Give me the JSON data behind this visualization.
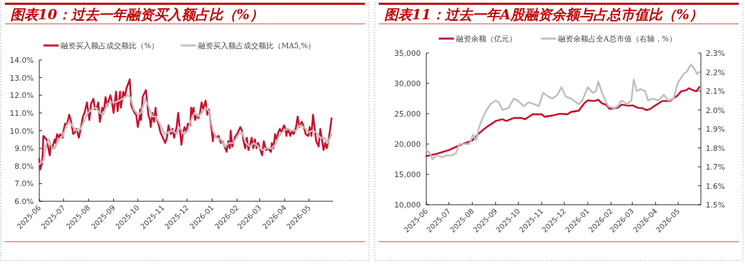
{
  "chart_data": [
    {
      "type": "line",
      "title": "图表10：过去一年融资买入额占比（%）",
      "legend": "top",
      "xlim": [
        "2025-06-01",
        "2026-05-31"
      ],
      "xticks": [
        "2025-06",
        "2025-07",
        "2025-08",
        "2025-09",
        "2025-10",
        "2025-11",
        "2025-12",
        "2026-01",
        "2026-02",
        "2026-03",
        "2026-04",
        "2026-05"
      ],
      "ylim": [
        6,
        14
      ],
      "yticks": [
        {
          "value": 6,
          "label": "6.0%"
        },
        {
          "value": 7,
          "label": "7.0%"
        },
        {
          "value": 8,
          "label": "8.0%"
        },
        {
          "value": 9,
          "label": "9.0%"
        },
        {
          "value": 10,
          "label": "10.0%"
        },
        {
          "value": 11,
          "label": "11.0%"
        },
        {
          "value": 12,
          "label": "12.0%"
        },
        {
          "value": 13,
          "label": "13.0%"
        },
        {
          "value": 14,
          "label": "14.0%"
        }
      ],
      "series": [
        {
          "name": "融资买入额占成交额比（%）",
          "color": "#c8102e",
          "x": [
            "2025-06-01",
            "2025-06-02",
            "2025-06-04",
            "2025-06-05",
            "2025-06-06",
            "2025-06-10",
            "2025-06-14",
            "2025-06-15",
            "2025-06-17",
            "2025-06-20",
            "2025-06-21",
            "2025-06-23",
            "2025-06-25",
            "2025-06-27",
            "2025-06-30",
            "2025-07-01",
            "2025-07-03",
            "2025-07-05",
            "2025-07-06",
            "2025-07-08",
            "2025-07-10",
            "2025-07-13",
            "2025-07-15",
            "2025-07-17",
            "2025-07-20",
            "2025-07-23",
            "2025-07-25",
            "2025-07-27",
            "2025-07-30",
            "2025-08-02",
            "2025-08-04",
            "2025-08-07",
            "2025-08-09",
            "2025-08-12",
            "2025-08-13",
            "2025-08-15",
            "2025-08-18",
            "2025-08-20",
            "2025-08-22",
            "2025-08-24",
            "2025-08-26",
            "2025-08-28",
            "2025-08-30",
            "2025-09-01",
            "2025-09-04",
            "2025-09-06",
            "2025-09-09",
            "2025-09-10",
            "2025-09-13",
            "2025-09-15",
            "2025-09-17",
            "2025-09-21",
            "2025-09-23",
            "2025-09-25",
            "2025-09-27",
            "2025-09-29",
            "2025-10-01",
            "2025-10-03",
            "2025-10-04",
            "2025-10-05",
            "2025-10-07",
            "2025-10-09",
            "2025-10-11",
            "2025-10-13",
            "2025-10-14",
            "2025-10-16",
            "2025-10-17",
            "2025-10-19",
            "2025-10-21",
            "2025-10-23",
            "2025-10-24",
            "2025-10-27",
            "2025-10-29",
            "2025-11-04",
            "2025-11-06",
            "2025-11-08",
            "2025-11-11",
            "2025-11-13",
            "2025-11-15",
            "2025-11-18",
            "2025-11-20",
            "2025-11-24",
            "2025-11-26",
            "2025-11-28",
            "2025-11-30",
            "2025-12-02",
            "2025-12-05",
            "2025-12-06",
            "2025-12-08",
            "2025-12-09",
            "2025-12-11",
            "2025-12-13",
            "2025-12-15",
            "2025-12-17",
            "2025-12-19",
            "2025-12-21",
            "2025-12-24",
            "2025-12-26",
            "2025-12-28",
            "2025-12-30",
            "2026-01-02",
            "2026-01-03",
            "2026-01-06",
            "2026-01-09",
            "2026-01-12",
            "2026-01-14",
            "2026-01-19",
            "2026-01-21",
            "2026-01-23",
            "2026-01-24",
            "2026-01-26",
            "2026-01-29",
            "2026-02-02",
            "2026-02-05",
            "2026-02-07",
            "2026-02-09",
            "2026-02-11",
            "2026-02-13",
            "2026-02-15",
            "2026-02-17",
            "2026-02-19",
            "2026-02-21",
            "2026-02-23",
            "2026-02-25",
            "2026-02-27",
            "2026-03-04",
            "2026-03-06",
            "2026-03-09",
            "2026-03-11",
            "2026-03-15",
            "2026-03-16",
            "2026-03-18",
            "2026-03-20",
            "2026-03-22",
            "2026-03-24",
            "2026-03-26",
            "2026-03-28",
            "2026-03-31",
            "2026-04-02",
            "2026-04-03",
            "2026-04-05",
            "2026-04-08",
            "2026-04-10",
            "2026-04-12",
            "2026-04-15",
            "2026-04-17",
            "2026-04-19",
            "2026-04-22",
            "2026-04-24",
            "2026-04-27",
            "2026-04-30",
            "2026-05-02",
            "2026-05-04",
            "2026-05-06",
            "2026-05-10",
            "2026-05-13",
            "2026-05-15",
            "2026-05-17",
            "2026-05-19",
            "2026-05-21",
            "2026-05-23",
            "2026-05-25",
            "2026-05-27",
            "2026-05-29"
          ],
          "values": [
            8.4,
            7.8,
            8.1,
            8.5,
            9.7,
            9.5,
            8.6,
            9.2,
            9.0,
            9.5,
            9.3,
            9.8,
            9.6,
            9.8,
            9.6,
            10.0,
            10.4,
            10.3,
            10.5,
            10.9,
            10.6,
            9.8,
            9.9,
            10.1,
            9.6,
            10.3,
            10.8,
            11.0,
            11.6,
            10.6,
            11.5,
            11.8,
            11.2,
            11.4,
            11.6,
            10.5,
            11.3,
            11.1,
            11.9,
            11.4,
            11.7,
            12.0,
            11.6,
            11.0,
            12.2,
            11.1,
            12.2,
            11.3,
            12.2,
            11.9,
            12.4,
            12.9,
            11.4,
            11.2,
            11.0,
            10.9,
            10.2,
            10.7,
            11.2,
            10.6,
            11.9,
            12.1,
            12.3,
            11.4,
            10.9,
            10.6,
            10.2,
            11.0,
            10.5,
            11.3,
            10.7,
            10.3,
            9.9,
            9.3,
            9.6,
            10.3,
            9.8,
            10.1,
            9.6,
            10.2,
            11.0,
            9.2,
            9.9,
            10.2,
            9.9,
            10.4,
            10.3,
            11.3,
            10.9,
            11.3,
            10.6,
            10.9,
            10.7,
            11.0,
            11.6,
            11.2,
            11.7,
            10.9,
            11.2,
            10.6,
            9.4,
            9.9,
            9.6,
            9.7,
            9.3,
            9.4,
            8.8,
            9.4,
            9.0,
            10.0,
            9.1,
            9.6,
            9.9,
            10.2,
            10.0,
            9.4,
            9.0,
            9.6,
            8.9,
            9.2,
            9.6,
            9.0,
            9.5,
            9.0,
            9.3,
            8.6,
            9.4,
            8.9,
            9.0,
            8.8,
            9.3,
            9.0,
            9.8,
            9.5,
            9.9,
            10.1,
            9.9,
            10.3,
            10.1,
            9.7,
            10.1,
            9.7,
            10.0,
            9.8,
            10.2,
            10.8,
            10.2,
            10.5,
            10.3,
            9.8,
            9.7,
            10.2,
            9.7,
            10.9,
            9.4,
            9.1,
            10.1,
            9.5,
            8.9,
            9.3,
            9.0,
            9.4,
            10.0,
            10.7
          ]
        },
        {
          "name": "融资买入额占成交额比（MA5,%）",
          "color": "#c0c0c0",
          "x": [
            "2025-06-01",
            "2025-06-06",
            "2025-06-10",
            "2025-06-13",
            "2025-06-17",
            "2025-06-20",
            "2025-06-25",
            "2025-06-30",
            "2025-07-05",
            "2025-07-08",
            "2025-07-13",
            "2025-07-17",
            "2025-07-22",
            "2025-07-27",
            "2025-07-31",
            "2025-08-05",
            "2025-08-10",
            "2025-08-15",
            "2025-08-19",
            "2025-08-24",
            "2025-08-29",
            "2025-09-03",
            "2025-09-08",
            "2025-09-12",
            "2025-09-18",
            "2025-09-22",
            "2025-09-26",
            "2025-10-01",
            "2025-10-05",
            "2025-10-10",
            "2025-10-14",
            "2025-10-19",
            "2025-10-23",
            "2025-10-28",
            "2025-11-03",
            "2025-11-08",
            "2025-11-13",
            "2025-11-18",
            "2025-11-22",
            "2025-11-27",
            "2025-12-02",
            "2025-12-06",
            "2025-12-10",
            "2025-12-15",
            "2025-12-19",
            "2025-12-24",
            "2025-12-28",
            "2026-01-02",
            "2026-01-06",
            "2026-01-12",
            "2026-01-17",
            "2026-01-22",
            "2026-01-27",
            "2026-02-03",
            "2026-02-07",
            "2026-02-12",
            "2026-02-17",
            "2026-02-22",
            "2026-02-27",
            "2026-03-04",
            "2026-03-10",
            "2026-03-16",
            "2026-03-20",
            "2026-03-25",
            "2026-03-31",
            "2026-04-05",
            "2026-04-10",
            "2026-04-15",
            "2026-04-20",
            "2026-04-25",
            "2026-04-30",
            "2026-05-05",
            "2026-05-10",
            "2026-05-15",
            "2026-05-20",
            "2026-05-24",
            "2026-05-29"
          ],
          "values": [
            8.1,
            8.3,
            9.3,
            9.5,
            9.0,
            9.0,
            9.5,
            9.7,
            10.3,
            10.5,
            10.2,
            10.0,
            10.1,
            10.6,
            11.0,
            11.2,
            11.3,
            11.0,
            10.9,
            11.5,
            11.6,
            11.6,
            11.7,
            11.8,
            12.0,
            11.9,
            11.2,
            10.9,
            11.0,
            11.8,
            11.4,
            10.8,
            10.8,
            10.4,
            9.8,
            9.9,
            10.0,
            9.8,
            10.2,
            9.8,
            10.0,
            10.6,
            11.0,
            10.8,
            11.0,
            11.3,
            11.1,
            10.0,
            9.6,
            9.5,
            9.1,
            9.3,
            9.3,
            9.8,
            9.9,
            9.3,
            9.1,
            9.3,
            9.1,
            8.9,
            9.0,
            9.0,
            9.2,
            9.7,
            10.0,
            10.1,
            10.0,
            10.0,
            10.3,
            10.2,
            9.9,
            10.0,
            9.9,
            9.6,
            9.6,
            9.3,
            9.8
          ]
        }
      ]
    },
    {
      "type": "line",
      "title": "图表11：过去一年A股融资余额与占总市值比（%）",
      "legend": "top",
      "xlim": [
        "2025-06-01",
        "2026-05-31"
      ],
      "xticks": [
        "2025-06",
        "2025-07",
        "2025-08",
        "2025-09",
        "2025-10",
        "2025-11",
        "2025-12",
        "2026-01",
        "2026-02",
        "2026-03",
        "2026-04",
        "2026-05"
      ],
      "ylim": [
        10000,
        35000
      ],
      "yticks": [
        {
          "value": 10000,
          "label": "10,000"
        },
        {
          "value": 15000,
          "label": "15,000"
        },
        {
          "value": 20000,
          "label": "20,000"
        },
        {
          "value": 25000,
          "label": "25,000"
        },
        {
          "value": 30000,
          "label": "30,000"
        },
        {
          "value": 35000,
          "label": "35,000"
        }
      ],
      "y2lim": [
        1.5,
        2.3
      ],
      "y2ticks": [
        {
          "value": 1.5,
          "label": "1.5%"
        },
        {
          "value": 1.6,
          "label": "1.6%"
        },
        {
          "value": 1.7,
          "label": "1.7%"
        },
        {
          "value": 1.8,
          "label": "1.8%"
        },
        {
          "value": 1.9,
          "label": "1.9%"
        },
        {
          "value": 2.0,
          "label": "2.0%"
        },
        {
          "value": 2.1,
          "label": "2.1%"
        },
        {
          "value": 2.2,
          "label": "2.2%"
        },
        {
          "value": 2.3,
          "label": "2.3%"
        }
      ],
      "series": [
        {
          "name": "融资余额（亿元）",
          "color": "#c8102e",
          "x": [
            "2025-06-01",
            "2025-06-15",
            "2025-07-01",
            "2025-07-15",
            "2025-08-01",
            "2025-08-10",
            "2025-08-20",
            "2025-09-01",
            "2025-09-10",
            "2025-09-15",
            "2025-09-25",
            "2025-10-05",
            "2025-10-10",
            "2025-10-20",
            "2025-11-01",
            "2025-11-05",
            "2025-11-15",
            "2025-11-25",
            "2025-12-05",
            "2025-12-10",
            "2025-12-20",
            "2025-12-28",
            "2026-01-01",
            "2026-01-10",
            "2026-01-15",
            "2026-01-20",
            "2026-01-25",
            "2026-01-30",
            "2026-02-10",
            "2026-02-15",
            "2026-02-25",
            "2026-03-01",
            "2026-03-08",
            "2026-03-15",
            "2026-03-20",
            "2026-03-25",
            "2026-04-01",
            "2026-04-10",
            "2026-04-20",
            "2026-04-30",
            "2026-05-05",
            "2026-05-12",
            "2026-05-15",
            "2026-05-20",
            "2026-05-25",
            "2026-05-29"
          ],
          "values": [
            18000,
            18400,
            19000,
            19800,
            20600,
            21800,
            22800,
            23800,
            24100,
            23800,
            24300,
            24300,
            24100,
            24900,
            24900,
            24500,
            24700,
            25000,
            24900,
            25300,
            25500,
            26800,
            27200,
            27100,
            27300,
            26700,
            26500,
            25800,
            26000,
            26500,
            26300,
            26400,
            26000,
            25900,
            25600,
            25800,
            26400,
            27100,
            27100,
            28000,
            28700,
            28900,
            29200,
            28900,
            28700,
            29400
          ]
        },
        {
          "name": "融资余额占全A总市值（右轴，%）",
          "color": "#c0c0c0",
          "axis": "y2",
          "x": [
            "2025-06-01",
            "2025-06-06",
            "2025-06-09",
            "2025-06-15",
            "2025-06-22",
            "2025-06-28",
            "2025-07-05",
            "2025-07-10",
            "2025-07-15",
            "2025-07-22",
            "2025-07-28",
            "2025-08-02",
            "2025-08-06",
            "2025-08-10",
            "2025-08-15",
            "2025-08-20",
            "2025-08-25",
            "2025-09-01",
            "2025-09-05",
            "2025-09-10",
            "2025-09-18",
            "2025-09-25",
            "2025-09-30",
            "2025-10-08",
            "2025-10-15",
            "2025-10-22",
            "2025-10-28",
            "2025-11-03",
            "2025-11-10",
            "2025-11-15",
            "2025-11-22",
            "2025-11-27",
            "2025-12-03",
            "2025-12-10",
            "2025-12-20",
            "2025-12-25",
            "2026-01-01",
            "2026-01-08",
            "2026-01-12",
            "2026-01-15",
            "2026-01-20",
            "2026-01-28",
            "2026-02-05",
            "2026-02-10",
            "2026-02-15",
            "2026-02-22",
            "2026-02-28",
            "2026-03-03",
            "2026-03-07",
            "2026-03-12",
            "2026-03-18",
            "2026-03-22",
            "2026-03-28",
            "2026-04-05",
            "2026-04-12",
            "2026-04-18",
            "2026-04-25",
            "2026-04-30",
            "2026-05-05",
            "2026-05-08",
            "2026-05-12",
            "2026-05-18",
            "2026-05-22",
            "2026-05-26",
            "2026-05-29"
          ],
          "values": [
            1.79,
            1.77,
            1.74,
            1.76,
            1.75,
            1.76,
            1.76,
            1.77,
            1.82,
            1.82,
            1.82,
            1.87,
            1.84,
            1.91,
            1.96,
            2.0,
            2.03,
            2.05,
            2.04,
            2.0,
            2.01,
            2.06,
            2.05,
            2.02,
            2.04,
            2.03,
            2.02,
            2.09,
            2.07,
            2.06,
            2.08,
            2.12,
            2.07,
            2.06,
            2.03,
            2.05,
            2.12,
            2.09,
            2.1,
            2.15,
            2.09,
            2.02,
            2.01,
            2.02,
            2.05,
            2.03,
            2.05,
            2.16,
            2.1,
            2.11,
            2.1,
            2.05,
            2.06,
            2.05,
            2.08,
            2.05,
            2.06,
            2.14,
            2.17,
            2.19,
            2.2,
            2.24,
            2.22,
            2.19,
            2.2
          ]
        }
      ]
    }
  ]
}
